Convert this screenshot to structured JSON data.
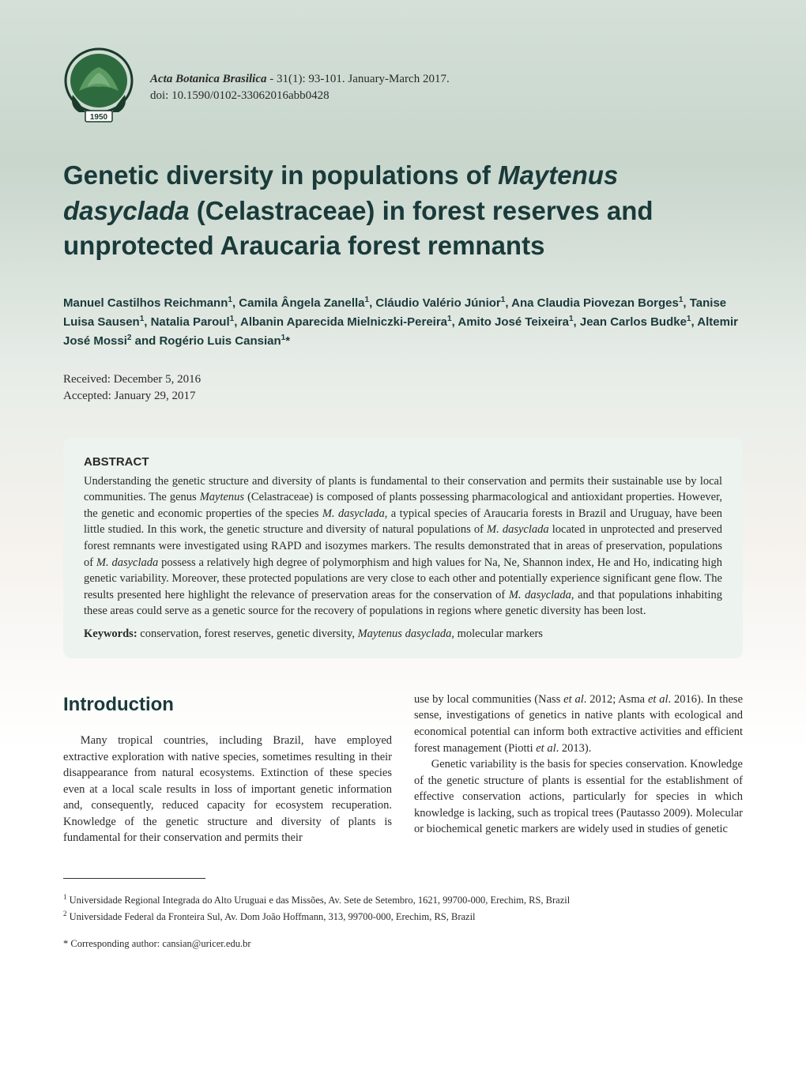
{
  "journal": {
    "name": "Acta Botanica Brasilica",
    "citation": " - 31(1): 93-101. January-March 2017.",
    "doi": "doi: 10.1590/0102-33062016abb0428"
  },
  "title": {
    "pre": "Genetic diversity in populations of ",
    "species": "Maytenus dasyclada",
    "post": " (Celastraceae) in forest reserves and unprotected Araucaria forest remnants"
  },
  "authors_html": "Manuel Castilhos Reichmann<sup>1</sup>, Camila Ângela Zanella<sup>1</sup>, Cláudio Valério Júnior<sup>1</sup>, Ana Claudia Piovezan Borges<sup>1</sup>, Tanise Luisa Sausen<sup>1</sup>, Natalia Paroul<sup>1</sup>, Albanin Aparecida Mielniczki-Pereira<sup>1</sup>, Amito José Teixeira<sup>1</sup>, Jean Carlos Budke<sup>1</sup>, Altemir José Mossi<sup>2</sup> and Rogério Luis Cansian<sup>1</sup>*",
  "dates": {
    "received": "Received: December 5, 2016",
    "accepted": "Accepted: January 29, 2017"
  },
  "abstract": {
    "heading": "ABSTRACT",
    "text_html": "Understanding the genetic structure and diversity of plants is fundamental to their conservation and permits their sustainable use by local communities. The genus <span class=\"species\">Maytenus</span> (Celastraceae) is composed of plants possessing pharmacological and antioxidant properties. However, the genetic and economic properties of the species <span class=\"species\">M. dasyclada</span>, a typical species of Araucaria forests in Brazil and Uruguay, have been little studied. In this work, the genetic structure and diversity of natural populations of <span class=\"species\">M. dasyclada</span> located in unprotected and preserved forest remnants were investigated using RAPD and isozymes markers. The results demonstrated that in areas of preservation, populations of <span class=\"species\">M. dasyclada</span> possess a relatively high degree of polymorphism and high values for Na, Ne, Shannon index, He and Ho, indicating high genetic variability. Moreover, these protected populations are very close to each other and potentially experience significant gene flow. The results presented here highlight the relevance of preservation areas for the conservation of <span class=\"species\">M. dasyclada</span>, and that populations inhabiting these areas could serve as a genetic source for the recovery of populations in regions where genetic diversity has been lost.",
    "keywords_label": "Keywords:",
    "keywords_html": " conservation, forest reserves, genetic diversity, <span class=\"species\">Maytenus dasyclada</span>, molecular markers"
  },
  "introduction": {
    "heading": "Introduction",
    "col1_html": "Many tropical countries, including Brazil, have employed extractive exploration with native species, sometimes resulting in their disappearance from natural ecosystems. Extinction of these species even at a local scale results in loss of important genetic information and, consequently, reduced capacity for ecosystem recuperation. Knowledge of the genetic structure and diversity of plants is fundamental for their conservation and permits their",
    "col2_p1_html": "use by local communities (Nass <span class=\"etal\">et al</span>. 2012; Asma <span class=\"etal\">et al</span>. 2016). In these sense, investigations of genetics in native plants with ecological and economical potential can inform both extractive activities and efficient forest management (Piotti <span class=\"etal\">et al</span>. 2013).",
    "col2_p2_html": "Genetic variability is the basis for species conservation. Knowledge of the genetic structure of plants is essential for the establishment of effective conservation actions, particularly for species in which knowledge is lacking, such as tropical trees (Pautasso 2009). Molecular or biochemical genetic markers are widely used in studies of genetic"
  },
  "footnotes": {
    "aff1_html": "<sup>1</sup> Universidade Regional Integrada do Alto Uruguai e das Missões, Av. Sete de Setembro, 1621, 99700-000, Erechim, RS, Brazil",
    "aff2_html": "<sup>2</sup> Universidade Federal da Fronteira Sul, Av. Dom João Hoffmann, 313, 99700-000, Erechim, RS, Brazil",
    "corresponding": "* Corresponding author: cansian@uricer.edu.br"
  },
  "colors": {
    "heading": "#1a3a3a",
    "abstract_bg": "#edf3ee",
    "text": "#2a2a2a",
    "logo_green": "#2d6b3f",
    "logo_dark": "#1a3a2a"
  }
}
